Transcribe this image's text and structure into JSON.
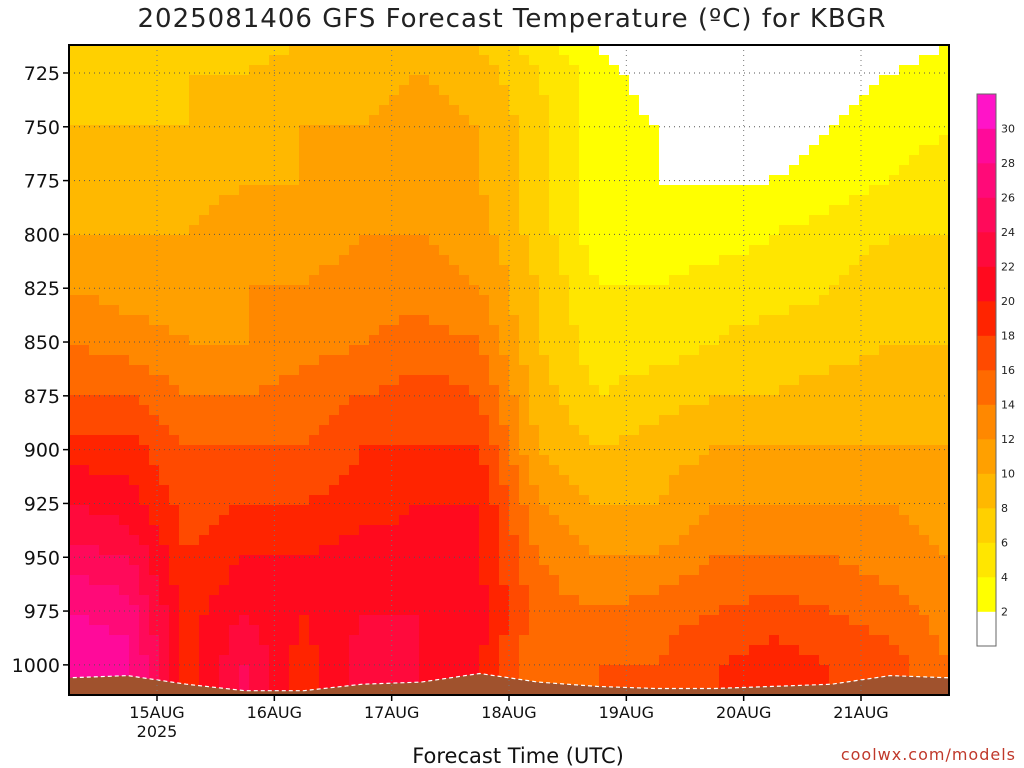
{
  "chart_data": {
    "type": "heatmap",
    "title": "2025081406 GFS Forecast Temperature (ºC) for KBGR",
    "xlabel": "Forecast Time (UTC)",
    "ylabel": "",
    "y_ticks": [
      725,
      750,
      775,
      800,
      825,
      850,
      875,
      900,
      925,
      950,
      975,
      1000
    ],
    "y_range": [
      712,
      1014
    ],
    "y_unit": "hPa",
    "x_ticks": [
      {
        "label": "15AUG",
        "sub": "2025",
        "hour": 18
      },
      {
        "label": "16AUG",
        "sub": "",
        "hour": 42
      },
      {
        "label": "17AUG",
        "sub": "",
        "hour": 66
      },
      {
        "label": "18AUG",
        "sub": "",
        "hour": 90
      },
      {
        "label": "19AUG",
        "sub": "",
        "hour": 114
      },
      {
        "label": "20AUG",
        "sub": "",
        "hour": 138
      },
      {
        "label": "21AUG",
        "sub": "",
        "hour": 162
      }
    ],
    "x_range_hours": [
      0,
      180
    ],
    "grid": true,
    "colorbar": {
      "labels": [
        "2",
        "4",
        "6",
        "8",
        "10",
        "12",
        "14",
        "16",
        "18",
        "20",
        "22",
        "24",
        "26",
        "28",
        "30"
      ],
      "bins": [
        {
          "from": 0,
          "to": 2,
          "color": "#ffffff"
        },
        {
          "from": 2,
          "to": 4,
          "color": "#ffff00"
        },
        {
          "from": 4,
          "to": 6,
          "color": "#ffe600"
        },
        {
          "from": 6,
          "to": 8,
          "color": "#ffd000"
        },
        {
          "from": 8,
          "to": 10,
          "color": "#ffb800"
        },
        {
          "from": 10,
          "to": 12,
          "color": "#ffa000"
        },
        {
          "from": 12,
          "to": 14,
          "color": "#ff8800"
        },
        {
          "from": 14,
          "to": 16,
          "color": "#ff6a00"
        },
        {
          "from": 16,
          "to": 18,
          "color": "#ff4a00"
        },
        {
          "from": 18,
          "to": 20,
          "color": "#ff2400"
        },
        {
          "from": 20,
          "to": 22,
          "color": "#ff0a1e"
        },
        {
          "from": 22,
          "to": 24,
          "color": "#ff0a3c"
        },
        {
          "from": 24,
          "to": 26,
          "color": "#ff0a5a"
        },
        {
          "from": 26,
          "to": 28,
          "color": "#ff0a78"
        },
        {
          "from": 28,
          "to": 30,
          "color": "#ff0a9a"
        },
        {
          "from": 30,
          "to": 32,
          "color": "#ff14c8"
        }
      ]
    },
    "surface_color": "#a0522d",
    "surface_pressure": [
      {
        "hour": 0,
        "hpa": 1006
      },
      {
        "hour": 12,
        "hpa": 1005
      },
      {
        "hour": 24,
        "hpa": 1009
      },
      {
        "hour": 36,
        "hpa": 1012
      },
      {
        "hour": 48,
        "hpa": 1012
      },
      {
        "hour": 60,
        "hpa": 1009
      },
      {
        "hour": 72,
        "hpa": 1008
      },
      {
        "hour": 84,
        "hpa": 1004
      },
      {
        "hour": 96,
        "hpa": 1008
      },
      {
        "hour": 108,
        "hpa": 1010
      },
      {
        "hour": 120,
        "hpa": 1011
      },
      {
        "hour": 132,
        "hpa": 1011
      },
      {
        "hour": 144,
        "hpa": 1010
      },
      {
        "hour": 156,
        "hpa": 1009
      },
      {
        "hour": 168,
        "hpa": 1005
      },
      {
        "hour": 180,
        "hpa": 1006
      }
    ],
    "temperature_grid": {
      "levels_hpa": [
        712,
        725,
        750,
        775,
        800,
        825,
        850,
        875,
        900,
        925,
        950,
        975,
        1000,
        1014
      ],
      "hours": [
        0,
        12,
        24,
        36,
        48,
        60,
        72,
        84,
        96,
        108,
        120,
        132,
        144,
        156,
        168,
        180
      ],
      "values": [
        [
          6,
          7,
          7,
          7,
          8,
          8,
          9,
          8,
          5,
          2,
          0,
          -1,
          -1,
          -1,
          1,
          2
        ],
        [
          7,
          7,
          8,
          8,
          9,
          9,
          10,
          9,
          6,
          3,
          1,
          0,
          0,
          1,
          2,
          3
        ],
        [
          8,
          8,
          8,
          9,
          10,
          10,
          11,
          10,
          7,
          3,
          2,
          1,
          1,
          2,
          3,
          4
        ],
        [
          9,
          9,
          9,
          10,
          10,
          11,
          11,
          10,
          7,
          3,
          2,
          2,
          2,
          3,
          4,
          5
        ],
        [
          10,
          10,
          10,
          11,
          11,
          12,
          12,
          11,
          7,
          3,
          3,
          3,
          4,
          5,
          6,
          6
        ],
        [
          12,
          11,
          11,
          12,
          12,
          13,
          13,
          12,
          8,
          4,
          4,
          5,
          5,
          6,
          7,
          7
        ],
        [
          14,
          13,
          12,
          12,
          13,
          14,
          15,
          14,
          8,
          5,
          5,
          6,
          7,
          7,
          8,
          8
        ],
        [
          16,
          16,
          14,
          14,
          15,
          16,
          17,
          16,
          9,
          6,
          7,
          8,
          8,
          9,
          9,
          9
        ],
        [
          19,
          19,
          16,
          16,
          16,
          18,
          18,
          18,
          10,
          8,
          9,
          10,
          10,
          10,
          10,
          10
        ],
        [
          22,
          21,
          17,
          18,
          18,
          19,
          20,
          20,
          12,
          10,
          10,
          12,
          12,
          12,
          12,
          11
        ],
        [
          25,
          24,
          18,
          20,
          20,
          21,
          21,
          20,
          14,
          12,
          12,
          14,
          14,
          14,
          13,
          12
        ],
        [
          28,
          27,
          19,
          22,
          20,
          22,
          22,
          21,
          15,
          14,
          15,
          16,
          17,
          16,
          15,
          13
        ],
        [
          30,
          29,
          19,
          24,
          19,
          23,
          22,
          20,
          14,
          16,
          16,
          18,
          19,
          18,
          17,
          14
        ],
        [
          30,
          29,
          19,
          25,
          19,
          23,
          22,
          20,
          14,
          16,
          16,
          18,
          19,
          18,
          17,
          14
        ]
      ]
    }
  }
}
